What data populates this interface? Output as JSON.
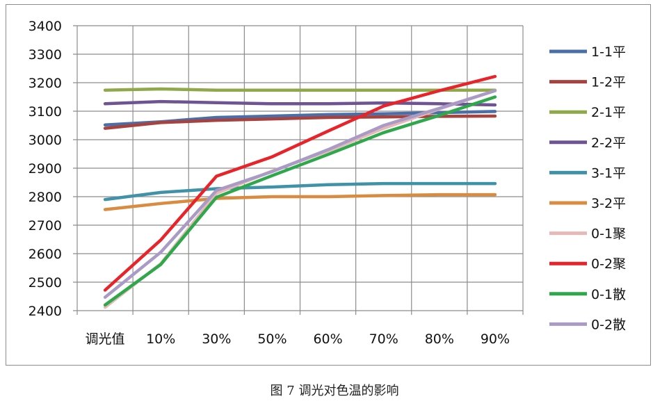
{
  "caption": "图 7  调光对色温的影响",
  "chart_data": {
    "type": "line",
    "categories": [
      "调光值",
      "10%",
      "30%",
      "50%",
      "60%",
      "70%",
      "80%",
      "90%"
    ],
    "ylim": [
      2400,
      3400
    ],
    "yticks": [
      2400,
      2500,
      2600,
      2700,
      2800,
      2900,
      3000,
      3100,
      3200,
      3300,
      3400
    ],
    "grid": true,
    "legend_position": "right",
    "series": [
      {
        "name": "1-1平",
        "color": "#4a6fa8",
        "values": [
          3052,
          3063,
          3078,
          3083,
          3088,
          3091,
          3095,
          3099
        ]
      },
      {
        "name": "1-2平",
        "color": "#a8423f",
        "values": [
          3040,
          3060,
          3068,
          3073,
          3078,
          3080,
          3082,
          3083
        ]
      },
      {
        "name": "2-1平",
        "color": "#8ea84a",
        "values": [
          3174,
          3178,
          3174,
          3174,
          3174,
          3174,
          3174,
          3174
        ]
      },
      {
        "name": "2-2平",
        "color": "#6e5493",
        "values": [
          3126,
          3134,
          3130,
          3126,
          3126,
          3129,
          3126,
          3122
        ]
      },
      {
        "name": "3-1平",
        "color": "#3f92a8",
        "values": [
          2790,
          2815,
          2828,
          2834,
          2842,
          2846,
          2846,
          2846
        ]
      },
      {
        "name": "3-2平",
        "color": "#d98b3f",
        "values": [
          2755,
          2776,
          2794,
          2800,
          2800,
          2804,
          2807,
          2807
        ]
      },
      {
        "name": "0-1聚",
        "color": "#e6b9b8",
        "values": [
          2412,
          2565,
          2812,
          2890,
          2960,
          3040,
          3108,
          3172
        ]
      },
      {
        "name": "0-2聚",
        "color": "#e8242a",
        "values": [
          2472,
          2648,
          2872,
          2940,
          3030,
          3118,
          3172,
          3222
        ]
      },
      {
        "name": "0-1散",
        "color": "#2ea84a",
        "values": [
          2420,
          2562,
          2798,
          2874,
          2948,
          3025,
          3085,
          3150
        ]
      },
      {
        "name": "0-2散",
        "color": "#a99bc6",
        "values": [
          2447,
          2605,
          2822,
          2888,
          2965,
          3050,
          3110,
          3172
        ]
      }
    ]
  }
}
